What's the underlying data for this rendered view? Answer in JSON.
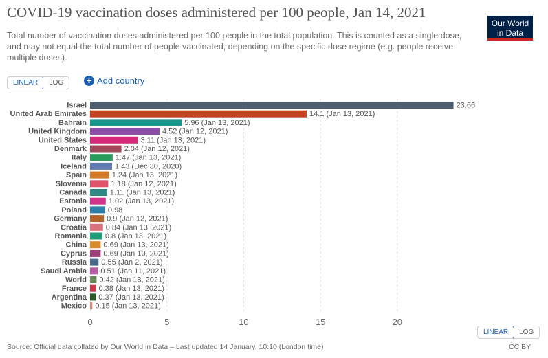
{
  "header": {
    "title": "COVID-19 vaccination doses administered per 100 people, Jan 14, 2021",
    "subtitle": "Total number of vaccination doses administered per 100 people in the total population. This is counted as a single dose, and may not equal the total number of people vaccinated, depending on the specific dose regime (e.g. people receive multiple doses).",
    "logo_line1": "Our World",
    "logo_line2": "in Data"
  },
  "controls": {
    "linear_label": "LINEAR",
    "log_label": "LOG",
    "add_country_label": "Add country",
    "add_icon": "+"
  },
  "footer": {
    "source": "Source: Official data collated by Our World in Data – Last updated 14 January, 10:10 (London time)",
    "license": "CC BY"
  },
  "chart_data": {
    "type": "bar",
    "orientation": "horizontal",
    "xlim": [
      0,
      25
    ],
    "xticks": [
      0,
      5,
      10,
      15,
      20
    ],
    "grid": true,
    "bars": [
      {
        "country": "Israel",
        "value": 23.66,
        "label": "23.66",
        "color": "#4d5e70"
      },
      {
        "country": "United Arab Emirates",
        "value": 14.1,
        "label": "14.1 (Jan 13, 2021)",
        "color": "#c0441f"
      },
      {
        "country": "Bahrain",
        "value": 5.96,
        "label": "5.96 (Jan 13, 2021)",
        "color": "#1a9a8e"
      },
      {
        "country": "United Kingdom",
        "value": 4.52,
        "label": "4.52 (Jan 12, 2021)",
        "color": "#8c4fa8"
      },
      {
        "country": "United States",
        "value": 3.11,
        "label": "3.11 (Jan 13, 2021)",
        "color": "#d6297a"
      },
      {
        "country": "Denmark",
        "value": 2.04,
        "label": "2.04 (Jan 12, 2021)",
        "color": "#a3485a"
      },
      {
        "country": "Italy",
        "value": 1.47,
        "label": "1.47 (Jan 13, 2021)",
        "color": "#2a9a5a"
      },
      {
        "country": "Iceland",
        "value": 1.43,
        "label": "1.43 (Dec 30, 2020)",
        "color": "#5e7ab0"
      },
      {
        "country": "Spain",
        "value": 1.24,
        "label": "1.24 (Jan 13, 2021)",
        "color": "#d27b2a"
      },
      {
        "country": "Slovenia",
        "value": 1.18,
        "label": "1.18 (Jan 12, 2021)",
        "color": "#e0546b"
      },
      {
        "country": "Canada",
        "value": 1.11,
        "label": "1.11 (Jan 13, 2021)",
        "color": "#2f8a84"
      },
      {
        "country": "Estonia",
        "value": 1.02,
        "label": "1.02 (Jan 13, 2021)",
        "color": "#d2348a"
      },
      {
        "country": "Poland",
        "value": 0.98,
        "label": "0.98",
        "color": "#2c7fa8"
      },
      {
        "country": "Germany",
        "value": 0.9,
        "label": "0.9 (Jan 12, 2021)",
        "color": "#b4642a"
      },
      {
        "country": "Croatia",
        "value": 0.84,
        "label": "0.84 (Jan 13, 2021)",
        "color": "#d9707a"
      },
      {
        "country": "Romania",
        "value": 0.8,
        "label": "0.8 (Jan 13, 2021)",
        "color": "#1f9c7c"
      },
      {
        "country": "China",
        "value": 0.69,
        "label": "0.69 (Jan 13, 2021)",
        "color": "#d98a2a"
      },
      {
        "country": "Cyprus",
        "value": 0.69,
        "label": "0.69 (Jan 10, 2021)",
        "color": "#a0407a"
      },
      {
        "country": "Russia",
        "value": 0.55,
        "label": "0.55 (Jan 2, 2021)",
        "color": "#4a6a8a"
      },
      {
        "country": "Saudi Arabia",
        "value": 0.51,
        "label": "0.51 (Jan 11, 2021)",
        "color": "#b75aa8"
      },
      {
        "country": "World",
        "value": 0.42,
        "label": "0.42 (Jan 13, 2021)",
        "color": "#6a8a5a"
      },
      {
        "country": "France",
        "value": 0.38,
        "label": "0.38 (Jan 13, 2021)",
        "color": "#d0384a"
      },
      {
        "country": "Argentina",
        "value": 0.37,
        "label": "0.37 (Jan 13, 2021)",
        "color": "#2a5a2a"
      },
      {
        "country": "Mexico",
        "value": 0.15,
        "label": "0.15 (Jan 13, 2021)",
        "color": "#d8907a"
      }
    ]
  }
}
